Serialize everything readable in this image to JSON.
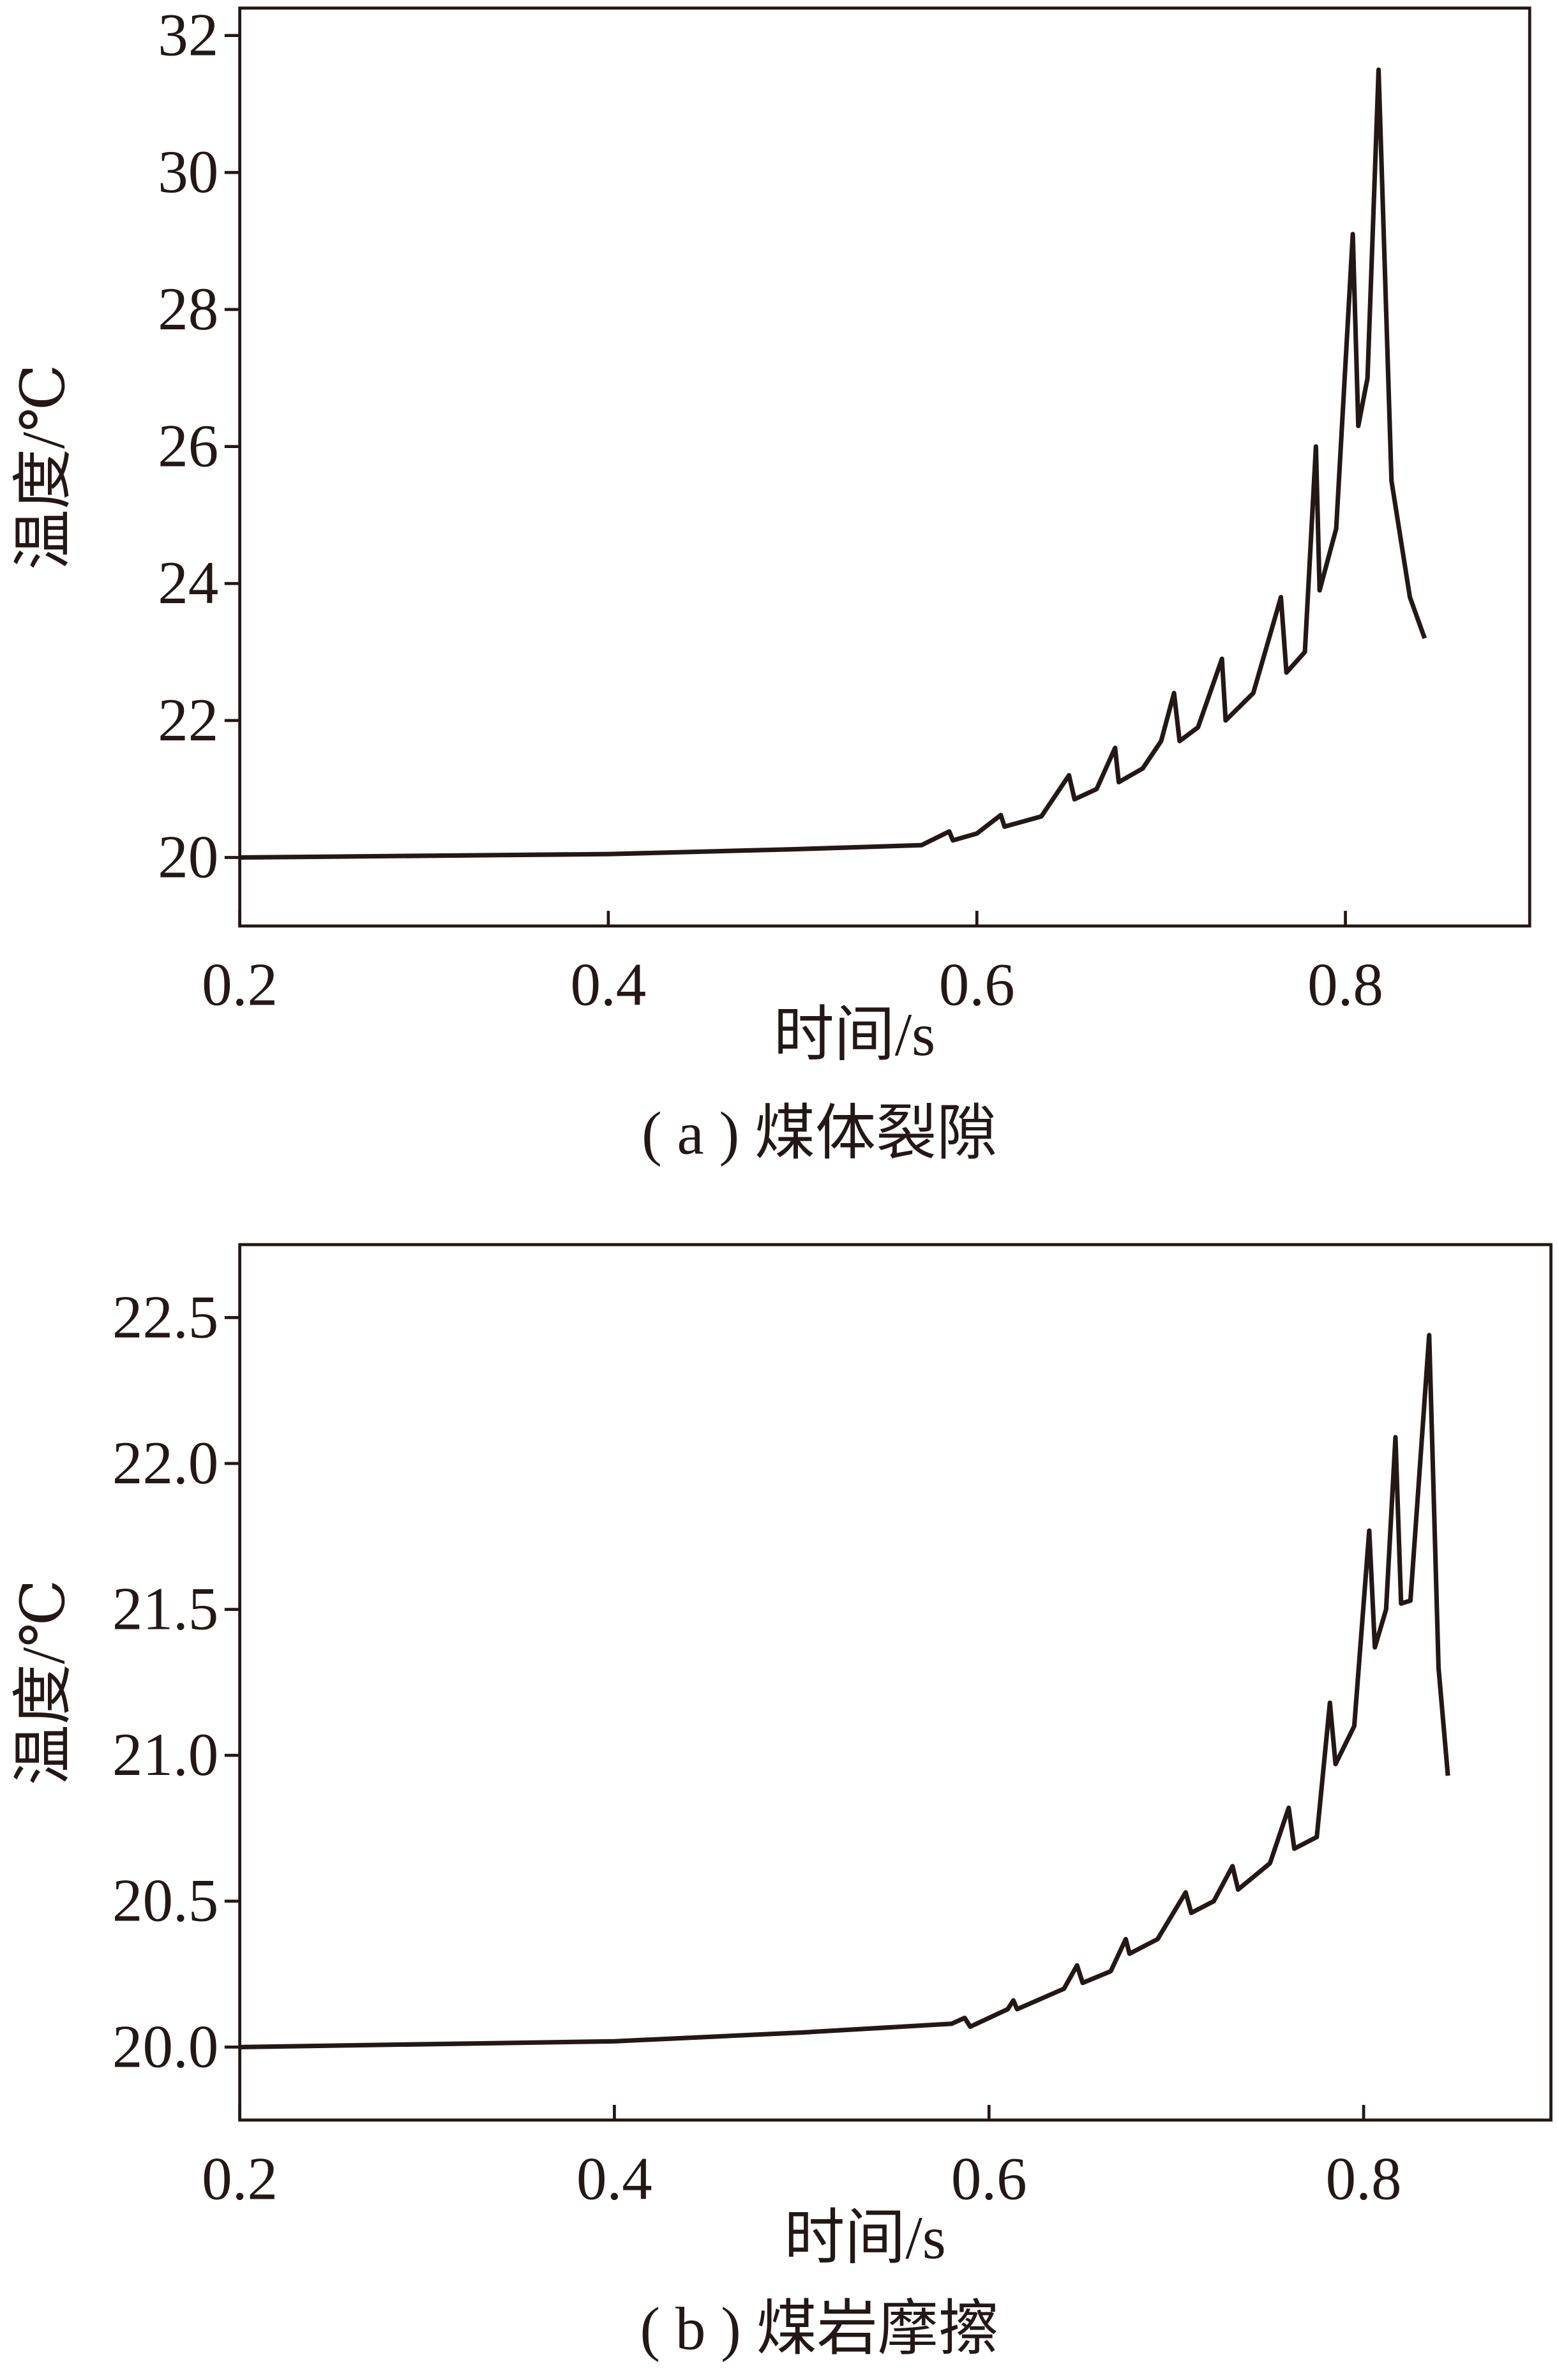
{
  "chart_data": [
    {
      "type": "line",
      "xlabel": "时间/s",
      "ylabel": "温度/℃",
      "caption": "( a ) 煤体裂隙",
      "xlim": [
        0.2,
        0.9
      ],
      "ylim": [
        19,
        32.4
      ],
      "xticks": [
        0.2,
        0.4,
        0.6,
        0.8
      ],
      "yticks": [
        20,
        22,
        24,
        26,
        28,
        30,
        32
      ],
      "color": "#231815",
      "x": [
        0.2,
        0.4,
        0.5,
        0.57,
        0.585,
        0.587,
        0.6,
        0.613,
        0.615,
        0.635,
        0.65,
        0.653,
        0.665,
        0.675,
        0.677,
        0.69,
        0.7,
        0.707,
        0.71,
        0.72,
        0.733,
        0.735,
        0.75,
        0.765,
        0.768,
        0.778,
        0.784,
        0.786,
        0.795,
        0.804,
        0.807,
        0.812,
        0.818,
        0.825,
        0.835,
        0.843
      ],
      "values": [
        20.0,
        20.05,
        20.12,
        20.18,
        20.38,
        20.25,
        20.35,
        20.62,
        20.45,
        20.6,
        21.2,
        20.85,
        21.0,
        21.6,
        21.1,
        21.3,
        21.7,
        22.4,
        21.7,
        21.9,
        22.9,
        22.0,
        22.4,
        23.8,
        22.7,
        23.0,
        26.0,
        23.9,
        24.8,
        29.1,
        26.3,
        27.0,
        31.5,
        25.5,
        23.8,
        23.2
      ]
    },
    {
      "type": "line",
      "xlabel": "时间/s",
      "ylabel": "温度/℃",
      "caption": "( b ) 煤岩摩擦",
      "xlim": [
        0.2,
        0.9
      ],
      "ylim": [
        19.75,
        22.75
      ],
      "xticks": [
        0.2,
        0.4,
        0.6,
        0.8
      ],
      "yticks": [
        {
          "value": 20,
          "label": "20.0"
        },
        20.5,
        {
          "value": 21,
          "label": "21.0"
        },
        21.5,
        {
          "value": 22,
          "label": "22.0"
        },
        22.5
      ],
      "color": "#231815",
      "x": [
        0.2,
        0.4,
        0.5,
        0.58,
        0.587,
        0.59,
        0.61,
        0.613,
        0.615,
        0.64,
        0.647,
        0.65,
        0.665,
        0.673,
        0.675,
        0.69,
        0.705,
        0.708,
        0.72,
        0.73,
        0.733,
        0.75,
        0.76,
        0.763,
        0.775,
        0.782,
        0.785,
        0.795,
        0.803,
        0.806,
        0.812,
        0.817,
        0.82,
        0.825,
        0.835,
        0.84,
        0.845
      ],
      "values": [
        20.0,
        20.02,
        20.05,
        20.08,
        20.1,
        20.07,
        20.13,
        20.16,
        20.13,
        20.2,
        20.28,
        20.22,
        20.26,
        20.37,
        20.32,
        20.37,
        20.53,
        20.46,
        20.5,
        20.62,
        20.54,
        20.63,
        20.82,
        20.68,
        20.72,
        21.18,
        20.97,
        21.1,
        21.77,
        21.37,
        21.5,
        22.09,
        21.52,
        21.53,
        22.44,
        21.3,
        20.93
      ]
    }
  ]
}
